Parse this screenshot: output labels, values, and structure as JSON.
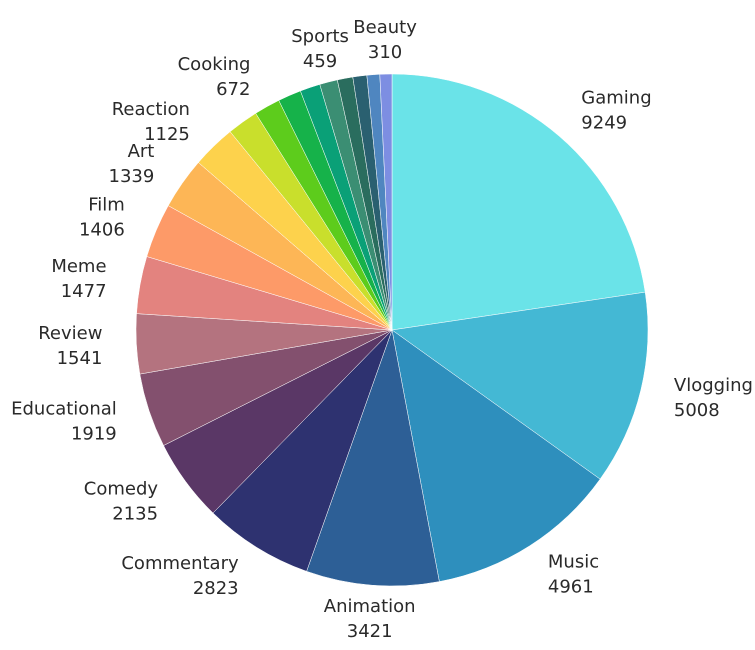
{
  "chart_data": {
    "type": "pie",
    "categories": [
      "Gaming",
      "Vlogging",
      "Music",
      "Animation",
      "Commentary",
      "Comedy",
      "Educational",
      "Review",
      "Meme",
      "Film",
      "Art",
      "Reaction",
      null,
      "Cooking",
      null,
      null,
      "Sports",
      null,
      null,
      null,
      "Beauty"
    ],
    "values": [
      9249,
      5008,
      4961,
      3421,
      2823,
      2135,
      1919,
      1541,
      1477,
      1406,
      1339,
      1125,
      800,
      672,
      600,
      520,
      459,
      400,
      360,
      330,
      310
    ],
    "colors": [
      "#6ae3e8",
      "#44b8d4",
      "#2e8fbd",
      "#2d5f96",
      "#2e3270",
      "#5a3766",
      "#83506e",
      "#b4737f",
      "#e3837f",
      "#fd9a68",
      "#fdb656",
      "#fdd24c",
      "#c9df2c",
      "#5dcc1c",
      "#16b24a",
      "#0aa077",
      "#3b8e73",
      "#2a6d5e",
      "#2a6070",
      "#4f86c0",
      "#7d8ee2"
    ]
  }
}
